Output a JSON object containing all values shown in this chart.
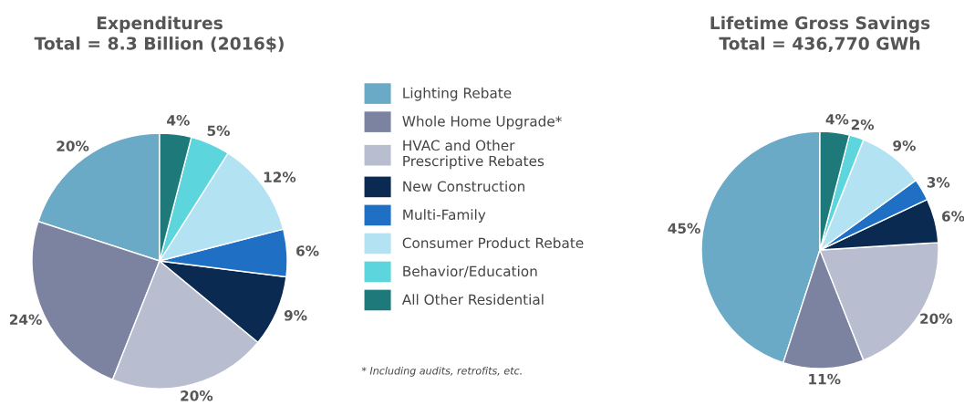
{
  "chart_data": [
    {
      "type": "pie",
      "title": "Expenditures\nTotal = 8.3 Billion (2016$)",
      "legend": "right",
      "categories": [
        "Lighting Rebate",
        "Whole Home Upgrade*",
        "HVAC and Other\nPrescriptive Rebates",
        "New Construction",
        "Multi-Family",
        "Consumer Product Rebate",
        "Behavior/Education",
        "All Other Residential"
      ],
      "values": [
        20,
        24,
        20,
        9,
        6,
        12,
        5,
        4
      ],
      "value_labels": [
        "20%",
        "24%",
        "20%",
        "9%",
        "6%",
        "12%",
        "5%",
        "4%"
      ],
      "colors": [
        "#6aaac6",
        "#7c83a0",
        "#b8bdcf",
        "#0b2a52",
        "#1f6fc5",
        "#b3e2f3",
        "#5dd5dc",
        "#1e7a7a"
      ],
      "annotations": [
        "* Including audits, retrofits, etc."
      ]
    },
    {
      "type": "pie",
      "title": "Lifetime Gross Savings\nTotal = 436,770 GWh",
      "categories": [
        null,
        null,
        null,
        null,
        null,
        null,
        null,
        null
      ],
      "values": [
        45,
        11,
        20,
        6,
        3,
        9,
        2,
        4
      ],
      "value_labels": [
        "45%",
        "11%",
        "20%",
        "6%",
        "3%",
        "9%",
        "2%",
        "4%"
      ],
      "colors": [
        "#6aaac6",
        "#7c83a0",
        "#b8bdcf",
        "#0b2a52",
        "#1f6fc5",
        "#b3e2f3",
        "#5dd5dc",
        "#1e7a7a"
      ]
    }
  ]
}
